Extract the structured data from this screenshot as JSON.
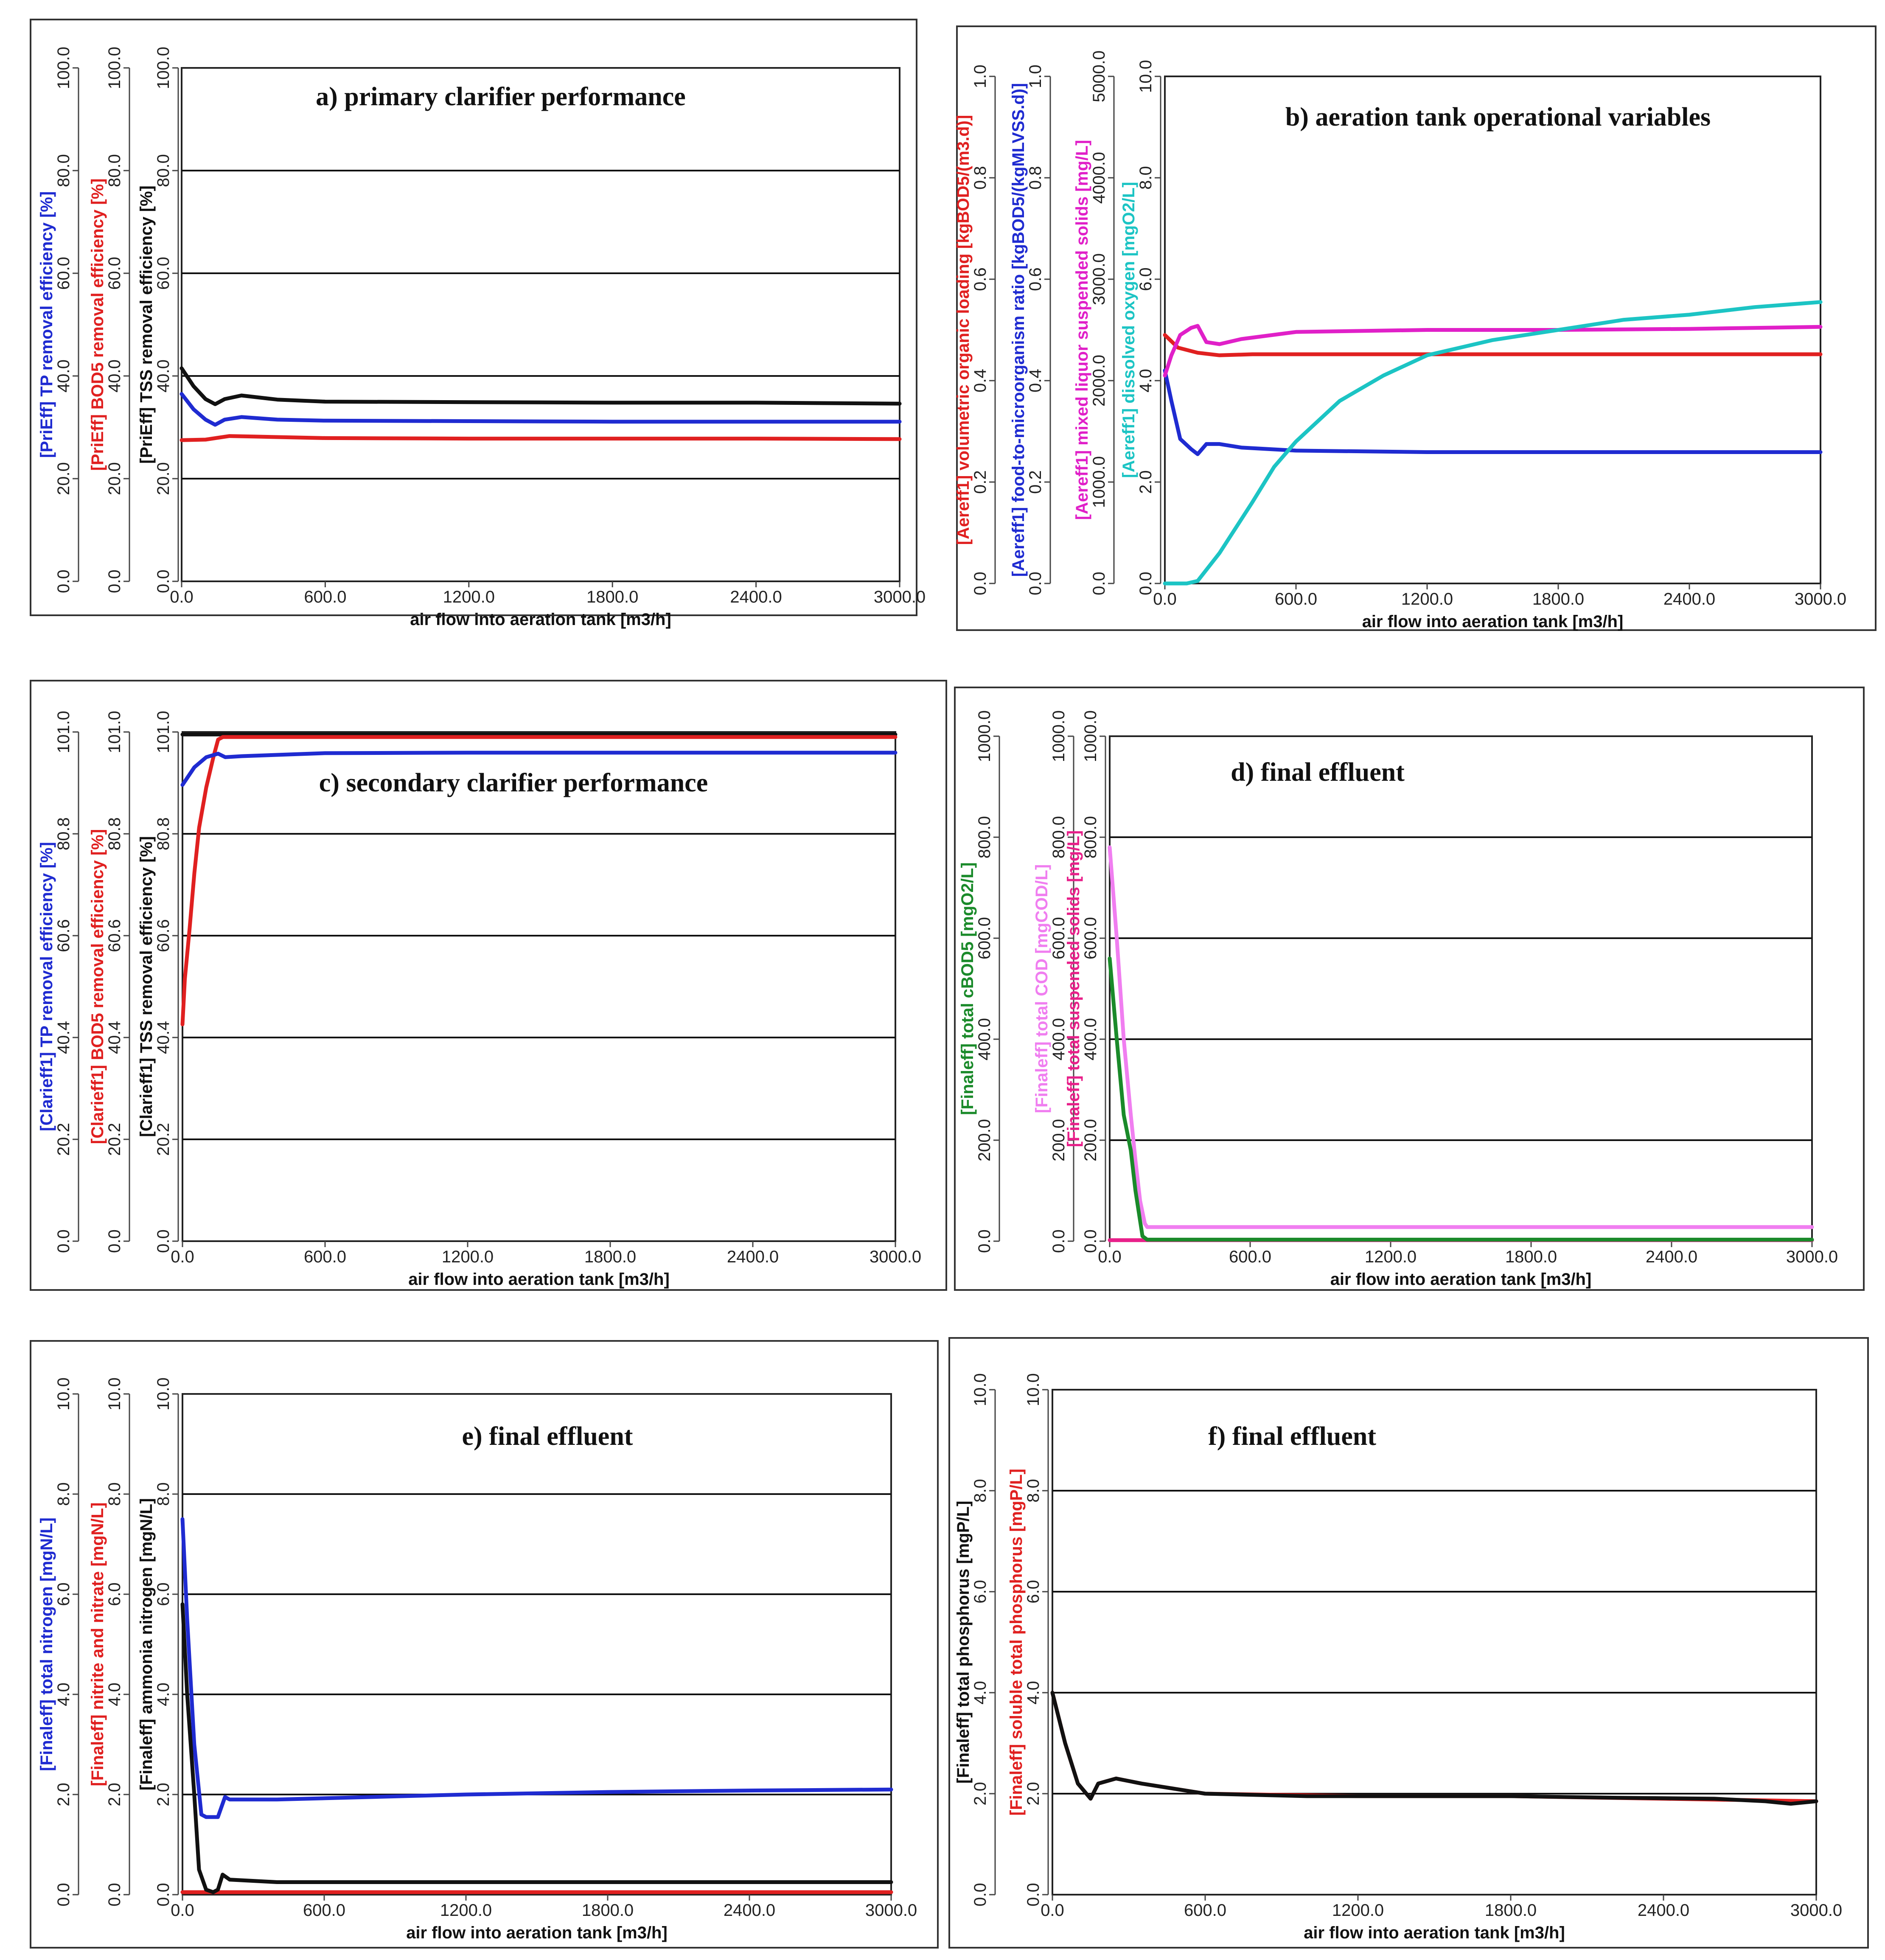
{
  "figure_title": "",
  "chart_data": [
    {
      "id": "a",
      "type": "line",
      "title": "a) primary clarifier performance",
      "xlabel": "air flow into aeration tank [m3/h]",
      "x_ticks": [
        "0.0",
        "600.0",
        "1200.0",
        "1800.0",
        "2400.0",
        "3000.0"
      ],
      "xlim": [
        0,
        3000
      ],
      "grid_values": [
        20,
        40,
        60,
        80
      ],
      "y_axes": [
        {
          "label": "[PriEff] TP removal efficiency [%]",
          "color": "#1f2bd1",
          "range": [
            0,
            100
          ],
          "ticks": [
            "0.0",
            "20.0",
            "40.0",
            "60.0",
            "80.0",
            "100.0"
          ]
        },
        {
          "label": "[PriEff] BOD5 removal efficiency [%]",
          "color": "#e02020",
          "range": [
            0,
            100
          ],
          "ticks": [
            "0.0",
            "20.0",
            "40.0",
            "60.0",
            "80.0",
            "100.0"
          ]
        },
        {
          "label": "[PriEff] TSS removal efficiency [%]",
          "color": "#111111",
          "range": [
            0,
            100
          ],
          "ticks": [
            "0.0",
            "20.0",
            "40.0",
            "60.0",
            "80.0",
            "100.0"
          ]
        }
      ],
      "series": [
        {
          "name": "[PriEff] TP removal efficiency [%]",
          "color": "#1f2bd1",
          "axis": 0,
          "x": [
            0,
            50,
            100,
            140,
            180,
            250,
            400,
            600,
            1200,
            1800,
            2400,
            3000
          ],
          "y": [
            36.5,
            33.5,
            31.5,
            30.5,
            31.5,
            32,
            31.5,
            31.3,
            31.2,
            31.1,
            31.1,
            31.1
          ]
        },
        {
          "name": "[PriEff] BOD5 removal efficiency [%]",
          "color": "#e02020",
          "axis": 1,
          "x": [
            0,
            100,
            200,
            300,
            600,
            1200,
            1800,
            2400,
            3000
          ],
          "y": [
            27.5,
            27.6,
            28.3,
            28.2,
            27.9,
            27.8,
            27.8,
            27.8,
            27.7
          ]
        },
        {
          "name": "[PriEff] TSS removal efficiency [%]",
          "color": "#111111",
          "axis": 2,
          "x": [
            0,
            50,
            100,
            140,
            180,
            250,
            400,
            600,
            1200,
            1800,
            2400,
            3000
          ],
          "y": [
            41.5,
            38,
            35.5,
            34.5,
            35.5,
            36.2,
            35.4,
            35,
            34.9,
            34.8,
            34.8,
            34.6
          ]
        }
      ]
    },
    {
      "id": "b",
      "type": "line",
      "title": "b) aeration tank operational variables",
      "xlabel": "air flow into aeration tank [m3/h]",
      "x_ticks": [
        "0.0",
        "600.0",
        "1200.0",
        "1800.0",
        "2400.0",
        "3000.0"
      ],
      "xlim": [
        0,
        3000
      ],
      "grid_values": [
        2,
        4,
        6,
        8
      ],
      "y_axes": [
        {
          "label": "[Aereff1] volumetric organic loading [kgBOD5/(m3.d)]",
          "color": "#e02020",
          "range": [
            0,
            1
          ],
          "ticks": [
            "0.0",
            "0.2",
            "0.4",
            "0.6",
            "0.8",
            "1.0"
          ]
        },
        {
          "label": "[Aereff1] food-to-microorganism ratio [kgBOD5/(kgMLVSS.d)]",
          "color": "#1f2bd1",
          "range": [
            0,
            1
          ],
          "ticks": [
            "0.0",
            "0.2",
            "0.4",
            "0.6",
            "0.8",
            "1.0"
          ]
        },
        {
          "label": "[Aereff1] mixed liquor suspended solids [mg/L]",
          "color": "#e020c8",
          "range": [
            0,
            5000
          ],
          "ticks": [
            "0.0",
            "1000.0",
            "2000.0",
            "3000.0",
            "4000.0",
            "5000.0"
          ]
        },
        {
          "label": "[Aereff1] dissolved oxygen [mgO2/L]",
          "color": "#1cc4c4",
          "range": [
            0,
            10
          ],
          "ticks": [
            "0.0",
            "2.0",
            "4.0",
            "6.0",
            "8.0",
            "10.0"
          ]
        }
      ],
      "series": [
        {
          "name": "[Aereff1] volumetric organic loading [kgBOD5/(m3.d)]",
          "color": "#e02020",
          "axis": 0,
          "x": [
            0,
            60,
            150,
            250,
            400,
            1200,
            1800,
            2400,
            3000
          ],
          "y": [
            0.49,
            0.465,
            0.455,
            0.45,
            0.452,
            0.452,
            0.452,
            0.452,
            0.452
          ]
        },
        {
          "name": "[Aereff1] food-to-microorganism ratio [kgBOD5/(kgMLVSS.d)]",
          "color": "#1f2bd1",
          "axis": 1,
          "x": [
            0,
            30,
            70,
            120,
            150,
            190,
            250,
            350,
            600,
            1200,
            1800,
            2400,
            3000
          ],
          "y": [
            0.42,
            0.36,
            0.285,
            0.265,
            0.255,
            0.275,
            0.275,
            0.268,
            0.262,
            0.259,
            0.259,
            0.259,
            0.259
          ]
        },
        {
          "name": "[Aereff1] mixed liquor suspended solids [mg/L]",
          "color": "#e020c8",
          "axis": 2,
          "x": [
            0,
            30,
            70,
            120,
            150,
            190,
            250,
            350,
            600,
            1200,
            1800,
            2400,
            3000
          ],
          "y": [
            2050,
            2250,
            2450,
            2520,
            2540,
            2380,
            2360,
            2410,
            2480,
            2500,
            2500,
            2510,
            2530
          ]
        },
        {
          "name": "[Aereff1] dissolved oxygen [mgO2/L]",
          "color": "#1cc4c4",
          "axis": 3,
          "x": [
            0,
            100,
            150,
            250,
            400,
            500,
            600,
            800,
            1000,
            1200,
            1500,
            1800,
            2100,
            2400,
            2700,
            3000
          ],
          "y": [
            0.0,
            0.0,
            0.05,
            0.6,
            1.6,
            2.3,
            2.8,
            3.6,
            4.1,
            4.5,
            4.8,
            5.0,
            5.2,
            5.3,
            5.45,
            5.55
          ]
        }
      ]
    },
    {
      "id": "c",
      "type": "line",
      "title": "c) secondary clarifier performance",
      "xlabel": "air flow into aeration tank [m3/h]",
      "x_ticks": [
        "0.0",
        "600.0",
        "1200.0",
        "1800.0",
        "2400.0",
        "3000.0"
      ],
      "xlim": [
        0,
        3000
      ],
      "grid_values": [
        20.2,
        40.4,
        60.6,
        80.8
      ],
      "y_axes": [
        {
          "label": "[Clarieff1] TP removal efficiency [%]",
          "color": "#1f2bd1",
          "range": [
            0,
            101
          ],
          "ticks": [
            "0.0",
            "20.2",
            "40.4",
            "60.6",
            "80.8",
            "101.0"
          ]
        },
        {
          "label": "[Clarieff1] BOD5 removal efficiency [%]",
          "color": "#e02020",
          "range": [
            0,
            101
          ],
          "ticks": [
            "0.0",
            "20.2",
            "40.4",
            "60.6",
            "80.8",
            "101.0"
          ]
        },
        {
          "label": "[Clarieff1] TSS removal efficiency [%]",
          "color": "#111111",
          "range": [
            0,
            101
          ],
          "ticks": [
            "0.0",
            "20.2",
            "40.4",
            "60.6",
            "80.8",
            "101.0"
          ]
        }
      ],
      "series": [
        {
          "name": "[Clarieff1] TSS removal efficiency [%]",
          "color": "#111111",
          "axis": 2,
          "x": [
            0,
            3000
          ],
          "y": [
            100.5,
            100.5
          ]
        },
        {
          "name": "[Clarieff1] BOD5 removal efficiency [%]",
          "color": "#e02020",
          "axis": 1,
          "x": [
            0,
            10,
            30,
            50,
            70,
            100,
            130,
            150,
            170,
            3000
          ],
          "y": [
            43,
            52,
            62,
            73,
            82,
            90,
            96,
            99.5,
            100,
            100
          ]
        },
        {
          "name": "[Clarieff1] TP removal efficiency [%]",
          "color": "#1f2bd1",
          "axis": 0,
          "x": [
            0,
            50,
            100,
            150,
            180,
            250,
            600,
            1200,
            1800,
            2400,
            3000
          ],
          "y": [
            90.5,
            94,
            96,
            96.7,
            96,
            96.2,
            96.8,
            96.9,
            96.9,
            96.9,
            96.9
          ]
        }
      ]
    },
    {
      "id": "d",
      "type": "line",
      "title": "d) final effluent",
      "xlabel": "air flow into aeration tank [m3/h]",
      "x_ticks": [
        "0.0",
        "600.0",
        "1200.0",
        "1800.0",
        "2400.0",
        "3000.0"
      ],
      "xlim": [
        0,
        3000
      ],
      "grid_values": [
        200,
        400,
        600,
        800
      ],
      "y_axes": [
        {
          "label": "[Finaleff] total cBOD5 [mgO2/L]",
          "color": "#1a8a2a",
          "range": [
            0,
            1000
          ],
          "ticks": [
            "0.0",
            "200.0",
            "400.0",
            "600.0",
            "800.0",
            "1000.0"
          ]
        },
        {
          "label": "[Finaleff] total COD [mgCOD/L]",
          "color": "#f07ef0",
          "range": [
            0,
            1000
          ],
          "ticks": [
            "0.0",
            "200.0",
            "400.0",
            "600.0",
            "800.0",
            "1000.0"
          ]
        },
        {
          "label": "[Finaleff] total suspended solids [mg/L]",
          "color": "#e8208a",
          "range": [
            0,
            1000
          ],
          "ticks": [
            "0.0",
            "200.0",
            "400.0",
            "600.0",
            "800.0",
            "1000.0"
          ]
        }
      ],
      "series": [
        {
          "name": "[Finaleff] total suspended solids [mg/L]",
          "color": "#e8208a",
          "axis": 2,
          "x": [
            0,
            3000
          ],
          "y": [
            2,
            2
          ]
        },
        {
          "name": "[Finaleff] total COD [mgCOD/L]",
          "color": "#f07ef0",
          "axis": 1,
          "x": [
            0,
            30,
            60,
            90,
            110,
            130,
            150,
            160,
            3000
          ],
          "y": [
            780,
            600,
            400,
            250,
            160,
            80,
            35,
            28,
            28
          ]
        },
        {
          "name": "[Finaleff] total cBOD5 [mgO2/L]",
          "color": "#1a8a2a",
          "axis": 0,
          "x": [
            0,
            30,
            60,
            90,
            110,
            130,
            140,
            160,
            3000
          ],
          "y": [
            560,
            400,
            250,
            180,
            100,
            40,
            10,
            3,
            3
          ]
        }
      ]
    },
    {
      "id": "e",
      "type": "line",
      "title": "e) final effluent",
      "xlabel": "air flow into aeration tank [m3/h]",
      "x_ticks": [
        "0.0",
        "600.0",
        "1200.0",
        "1800.0",
        "2400.0",
        "3000.0"
      ],
      "xlim": [
        0,
        3000
      ],
      "grid_values": [
        2,
        4,
        6,
        8
      ],
      "y_axes": [
        {
          "label": "[Finaleff] total nitrogen [mgN/L]",
          "color": "#1f2bd1",
          "range": [
            0,
            10
          ],
          "ticks": [
            "0.0",
            "2.0",
            "4.0",
            "6.0",
            "8.0",
            "10.0"
          ]
        },
        {
          "label": "[Finaleff] nitrite and nitrate [mgN/L]",
          "color": "#e02020",
          "range": [
            0,
            10
          ],
          "ticks": [
            "0.0",
            "2.0",
            "4.0",
            "6.0",
            "8.0",
            "10.0"
          ]
        },
        {
          "label": "[Finaleff] ammonia nitrogen [mgN/L]",
          "color": "#111111",
          "axis_hidden": false,
          "range": [
            0,
            10
          ],
          "ticks": [
            "0.0",
            "2.0",
            "4.0",
            "6.0",
            "8.0",
            "10.0"
          ]
        }
      ],
      "series": [
        {
          "name": "[Finaleff] nitrite and nitrate [mgN/L]",
          "color": "#e02020",
          "axis": 1,
          "x": [
            0,
            3000
          ],
          "y": [
            0.05,
            0.05
          ]
        },
        {
          "name": "[Finaleff] total nitrogen [mgN/L]",
          "color": "#1f2bd1",
          "axis": 0,
          "x": [
            0,
            20,
            50,
            80,
            100,
            150,
            180,
            200,
            400,
            1200,
            1800,
            2400,
            3000
          ],
          "y": [
            7.5,
            5.5,
            3.0,
            1.6,
            1.55,
            1.55,
            1.95,
            1.9,
            1.9,
            2.0,
            2.05,
            2.08,
            2.1
          ]
        },
        {
          "name": "[Finaleff] ammonia nitrogen [mgN/L]",
          "color": "#111111",
          "axis": 2,
          "x": [
            0,
            20,
            50,
            70,
            100,
            130,
            150,
            170,
            200,
            400,
            1200,
            1800,
            2400,
            3000
          ],
          "y": [
            5.8,
            4.0,
            2.0,
            0.5,
            0.1,
            0.05,
            0.1,
            0.4,
            0.3,
            0.25,
            0.25,
            0.25,
            0.25,
            0.25
          ]
        }
      ]
    },
    {
      "id": "f",
      "type": "line",
      "title": "f) final effluent",
      "xlabel": "air flow into aeration tank [m3/h]",
      "x_ticks": [
        "0.0",
        "600.0",
        "1200.0",
        "1800.0",
        "2400.0",
        "3000.0"
      ],
      "xlim": [
        0,
        3000
      ],
      "grid_values": [
        2,
        4,
        6,
        8
      ],
      "y_axes": [
        {
          "label": "[Finaleff] total phosphorus [mgP/L]",
          "color": "#111111",
          "range": [
            0,
            10
          ],
          "ticks": [
            "0.0",
            "2.0",
            "4.0",
            "6.0",
            "8.0",
            "10.0"
          ]
        },
        {
          "label": "[Finaleff] soluble total phosphorus [mgP/L]",
          "color": "#e02020",
          "range": [
            0,
            10
          ],
          "ticks": [
            "0.0",
            "2.0",
            "4.0",
            "6.0",
            "8.0",
            "10.0"
          ]
        }
      ],
      "series": [
        {
          "name": "[Finaleff] soluble total phosphorus [mgP/L]",
          "color": "#e02020",
          "axis": 1,
          "x": [
            0,
            50,
            100,
            150,
            180,
            250,
            350,
            600,
            1200,
            1800,
            2400,
            3000
          ],
          "y": [
            4.0,
            3.0,
            2.2,
            1.9,
            2.2,
            2.3,
            2.2,
            2.0,
            1.95,
            1.95,
            1.9,
            1.85
          ]
        },
        {
          "name": "[Finaleff] total phosphorus [mgP/L]",
          "color": "#111111",
          "axis": 0,
          "x": [
            0,
            50,
            100,
            150,
            180,
            250,
            350,
            600,
            1000,
            1400,
            1800,
            2200,
            2600,
            2800,
            2900,
            3000
          ],
          "y": [
            4.0,
            3.0,
            2.2,
            1.9,
            2.2,
            2.3,
            2.2,
            2.0,
            1.95,
            1.95,
            1.95,
            1.92,
            1.9,
            1.85,
            1.8,
            1.85
          ]
        }
      ]
    }
  ]
}
